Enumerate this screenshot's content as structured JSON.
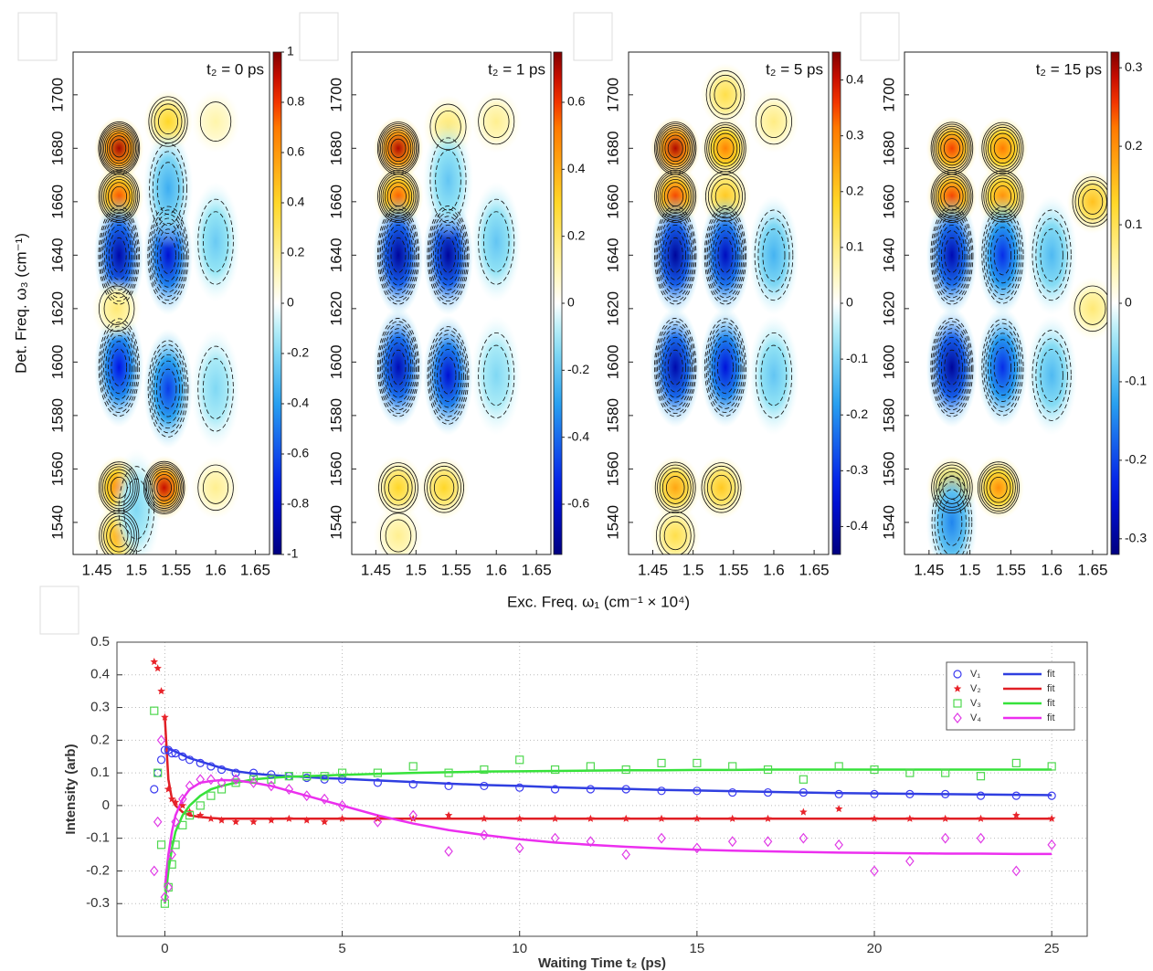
{
  "xlabel": "Exc. Freq. ω₁ (cm⁻¹ × 10⁴)",
  "chart_data": [
    {
      "type": "contour",
      "title": "t₂ = 0 ps",
      "ylabel": "Det. Freq. ω₃ (cm⁻¹)",
      "xlim": [
        1.42,
        1.668
      ],
      "xticks": [
        1.45,
        1.5,
        1.55,
        1.6,
        1.65
      ],
      "ylim": [
        1528,
        1716
      ],
      "yticks": [
        1540,
        1560,
        1580,
        1600,
        1620,
        1640,
        1660,
        1680,
        1700
      ],
      "zlim": [
        -1,
        1
      ],
      "zticks": [
        -1,
        -0.8,
        -0.6,
        -0.4,
        -0.2,
        0,
        0.2,
        0.4,
        0.6,
        0.8,
        1
      ],
      "x": [
        1.478,
        1.478,
        1.54,
        1.478,
        1.54,
        1.478,
        1.54,
        1.478,
        1.535,
        1.478,
        1.475,
        1.6,
        1.6,
        1.54,
        1.5,
        1.6,
        1.6
      ],
      "y": [
        1680,
        1662,
        1690,
        1640,
        1640,
        1598,
        1590,
        1553,
        1553,
        1535,
        1620,
        1645,
        1590,
        1665,
        1545,
        1553,
        1690
      ],
      "values": [
        0.95,
        0.75,
        0.4,
        -0.9,
        -0.8,
        -0.75,
        -0.65,
        0.7,
        0.9,
        0.55,
        0.25,
        -0.25,
        -0.2,
        -0.35,
        -0.2,
        0.2,
        0.15
      ]
    },
    {
      "type": "contour",
      "title": "t₂ = 1 ps",
      "xlim": [
        1.42,
        1.668
      ],
      "xticks": [
        1.45,
        1.5,
        1.55,
        1.6,
        1.65
      ],
      "ylim": [
        1528,
        1716
      ],
      "yticks": [
        1540,
        1560,
        1580,
        1600,
        1620,
        1640,
        1660,
        1680,
        1700
      ],
      "zlim": [
        -0.75,
        0.75
      ],
      "zticks": [
        -0.6,
        -0.4,
        -0.2,
        0,
        0.2,
        0.4,
        0.6
      ],
      "x": [
        1.478,
        1.478,
        1.54,
        1.478,
        1.54,
        1.478,
        1.54,
        1.478,
        1.535,
        1.478,
        1.6,
        1.6,
        1.54,
        1.6
      ],
      "y": [
        1680,
        1662,
        1688,
        1640,
        1640,
        1598,
        1595,
        1553,
        1553,
        1535,
        1645,
        1595,
        1668,
        1690
      ],
      "values": [
        0.7,
        0.55,
        0.2,
        -0.7,
        -0.7,
        -0.65,
        -0.6,
        0.3,
        0.3,
        0.15,
        -0.2,
        -0.15,
        -0.2,
        0.15
      ]
    },
    {
      "type": "contour",
      "title": "t₂ = 5 ps",
      "xlim": [
        1.42,
        1.668
      ],
      "xticks": [
        1.45,
        1.5,
        1.55,
        1.6,
        1.65
      ],
      "ylim": [
        1528,
        1716
      ],
      "yticks": [
        1540,
        1560,
        1580,
        1600,
        1620,
        1640,
        1660,
        1680,
        1700
      ],
      "zlim": [
        -0.45,
        0.45
      ],
      "zticks": [
        -0.4,
        -0.3,
        -0.2,
        -0.1,
        0,
        0.1,
        0.2,
        0.3,
        0.4
      ],
      "x": [
        1.478,
        1.478,
        1.54,
        1.54,
        1.478,
        1.54,
        1.478,
        1.54,
        1.478,
        1.535,
        1.478,
        1.6,
        1.6,
        1.54,
        1.6
      ],
      "y": [
        1680,
        1662,
        1680,
        1662,
        1640,
        1640,
        1598,
        1598,
        1553,
        1553,
        1535,
        1640,
        1595,
        1700,
        1690
      ],
      "values": [
        0.42,
        0.35,
        0.3,
        0.2,
        -0.42,
        -0.38,
        -0.4,
        -0.35,
        0.25,
        0.2,
        0.15,
        -0.15,
        -0.12,
        0.15,
        0.1
      ]
    },
    {
      "type": "contour",
      "title": "t₂ = 15 ps",
      "xlim": [
        1.42,
        1.668
      ],
      "xticks": [
        1.45,
        1.5,
        1.55,
        1.6,
        1.65
      ],
      "ylim": [
        1528,
        1716
      ],
      "yticks": [
        1540,
        1560,
        1580,
        1600,
        1620,
        1640,
        1660,
        1680,
        1700
      ],
      "zlim": [
        -0.32,
        0.32
      ],
      "zticks": [
        -0.3,
        -0.2,
        -0.1,
        0,
        0.1,
        0.2,
        0.3
      ],
      "x": [
        1.478,
        1.478,
        1.54,
        1.54,
        1.478,
        1.54,
        1.478,
        1.54,
        1.478,
        1.535,
        1.478,
        1.6,
        1.6,
        1.65,
        1.65
      ],
      "y": [
        1680,
        1662,
        1680,
        1662,
        1640,
        1640,
        1598,
        1598,
        1553,
        1553,
        1540,
        1640,
        1595,
        1660,
        1620
      ],
      "values": [
        0.25,
        0.25,
        0.22,
        0.2,
        -0.28,
        -0.22,
        -0.3,
        -0.22,
        0.18,
        0.2,
        -0.15,
        -0.1,
        -0.1,
        0.15,
        0.08
      ]
    },
    {
      "type": "line",
      "xlabel": "Waiting Time t₂ (ps)",
      "ylabel": "Intensity (arb)",
      "xlim": [
        -1.35,
        26
      ],
      "xticks": [
        0,
        5,
        10,
        15,
        20,
        25
      ],
      "ylim": [
        -0.4,
        0.5
      ],
      "yticks": [
        -0.3,
        -0.2,
        -0.1,
        0,
        0.1,
        0.2,
        0.3,
        0.4,
        0.5
      ],
      "grid": true,
      "legend": "upper right",
      "x": [
        -0.3,
        -0.2,
        -0.1,
        0,
        0.1,
        0.2,
        0.3,
        0.5,
        0.7,
        1,
        1.3,
        1.6,
        2,
        2.5,
        3,
        3.5,
        4,
        4.5,
        5,
        6,
        7,
        8,
        9,
        10,
        11,
        12,
        13,
        14,
        15,
        16,
        17,
        18,
        19,
        20,
        21,
        22,
        23,
        24,
        25
      ],
      "series": [
        {
          "name": "V₁",
          "kind": "points",
          "marker": "circle",
          "color": "#3b3bf0",
          "values": [
            0.05,
            0.1,
            0.14,
            0.17,
            0.17,
            0.16,
            0.16,
            0.15,
            0.14,
            0.13,
            0.12,
            0.11,
            0.1,
            0.1,
            0.095,
            0.09,
            0.085,
            0.08,
            0.08,
            0.07,
            0.065,
            0.06,
            0.06,
            0.055,
            0.05,
            0.05,
            0.05,
            0.045,
            0.045,
            0.04,
            0.04,
            0.04,
            0.035,
            0.035,
            0.035,
            0.035,
            0.03,
            0.03,
            0.03
          ]
        },
        {
          "name": "V₂",
          "kind": "points",
          "marker": "star",
          "color": "#e8232a",
          "values": [
            0.44,
            0.42,
            0.35,
            0.27,
            0.05,
            0.02,
            0.01,
            0.0,
            -0.02,
            -0.03,
            -0.04,
            -0.045,
            -0.05,
            -0.05,
            -0.045,
            -0.04,
            -0.045,
            -0.05,
            -0.04,
            -0.04,
            -0.04,
            -0.03,
            -0.04,
            -0.04,
            -0.04,
            -0.04,
            -0.04,
            -0.04,
            -0.04,
            -0.04,
            -0.04,
            -0.02,
            -0.01,
            -0.04,
            -0.04,
            -0.04,
            -0.04,
            -0.03,
            -0.04
          ]
        },
        {
          "name": "V₃",
          "kind": "points",
          "marker": "square",
          "color": "#4fd84f",
          "values": [
            0.29,
            0.1,
            -0.12,
            -0.3,
            -0.25,
            -0.18,
            -0.12,
            -0.06,
            -0.03,
            0.0,
            0.03,
            0.05,
            0.07,
            0.08,
            0.08,
            0.09,
            0.09,
            0.09,
            0.1,
            0.1,
            0.12,
            0.1,
            0.11,
            0.14,
            0.11,
            0.12,
            0.11,
            0.13,
            0.13,
            0.12,
            0.11,
            0.08,
            0.12,
            0.11,
            0.1,
            0.1,
            0.09,
            0.13,
            0.12
          ]
        },
        {
          "name": "V₄",
          "kind": "points",
          "marker": "diamond",
          "color": "#e03be6",
          "values": [
            -0.2,
            -0.05,
            0.2,
            -0.28,
            -0.25,
            -0.15,
            -0.05,
            0.02,
            0.06,
            0.08,
            0.08,
            0.07,
            0.08,
            0.07,
            0.06,
            0.05,
            0.03,
            0.02,
            0.0,
            -0.05,
            -0.03,
            -0.14,
            -0.09,
            -0.13,
            -0.1,
            -0.11,
            -0.15,
            -0.1,
            -0.13,
            -0.11,
            -0.11,
            -0.1,
            -0.12,
            -0.2,
            -0.17,
            -0.1,
            -0.1,
            -0.2,
            -0.12
          ]
        },
        {
          "name": "fit",
          "kind": "line",
          "color": "#2f3fe0",
          "values": [
            null,
            null,
            null,
            0.18,
            0.175,
            0.17,
            0.165,
            0.155,
            0.145,
            0.135,
            0.125,
            0.115,
            0.105,
            0.098,
            0.093,
            0.09,
            0.087,
            0.084,
            0.082,
            0.077,
            0.072,
            0.067,
            0.063,
            0.06,
            0.056,
            0.053,
            0.051,
            0.048,
            0.046,
            0.044,
            0.042,
            0.04,
            0.038,
            0.037,
            0.036,
            0.035,
            0.034,
            0.033,
            0.032
          ]
        },
        {
          "name": "fit",
          "kind": "line",
          "color": "#e01f25",
          "values": [
            null,
            null,
            null,
            0.27,
            0.08,
            0.02,
            0.0,
            -0.02,
            -0.03,
            -0.035,
            -0.038,
            -0.04,
            -0.04,
            -0.04,
            -0.04,
            -0.04,
            -0.04,
            -0.04,
            -0.04,
            -0.04,
            -0.04,
            -0.04,
            -0.04,
            -0.04,
            -0.04,
            -0.04,
            -0.04,
            -0.04,
            -0.04,
            -0.04,
            -0.04,
            -0.04,
            -0.04,
            -0.04,
            -0.04,
            -0.04,
            -0.04,
            -0.04,
            -0.04
          ]
        },
        {
          "name": "fit",
          "kind": "line",
          "color": "#36e23a",
          "values": [
            null,
            null,
            null,
            -0.3,
            -0.2,
            -0.13,
            -0.08,
            -0.03,
            0.0,
            0.03,
            0.05,
            0.06,
            0.07,
            0.08,
            0.085,
            0.088,
            0.09,
            0.092,
            0.094,
            0.097,
            0.1,
            0.102,
            0.104,
            0.105,
            0.106,
            0.107,
            0.108,
            0.108,
            0.109,
            0.109,
            0.11,
            0.11,
            0.11,
            0.11,
            0.11,
            0.11,
            0.11,
            0.11,
            0.11
          ]
        },
        {
          "name": "fit",
          "kind": "line",
          "color": "#ec2fef",
          "values": [
            null,
            null,
            null,
            -0.25,
            -0.15,
            -0.08,
            -0.03,
            0.02,
            0.05,
            0.07,
            0.075,
            0.078,
            0.077,
            0.07,
            0.06,
            0.045,
            0.03,
            0.015,
            0.0,
            -0.03,
            -0.055,
            -0.075,
            -0.09,
            -0.103,
            -0.113,
            -0.12,
            -0.126,
            -0.131,
            -0.135,
            -0.138,
            -0.14,
            -0.142,
            -0.144,
            -0.145,
            -0.146,
            -0.147,
            -0.147,
            -0.148,
            -0.148
          ]
        }
      ]
    }
  ]
}
